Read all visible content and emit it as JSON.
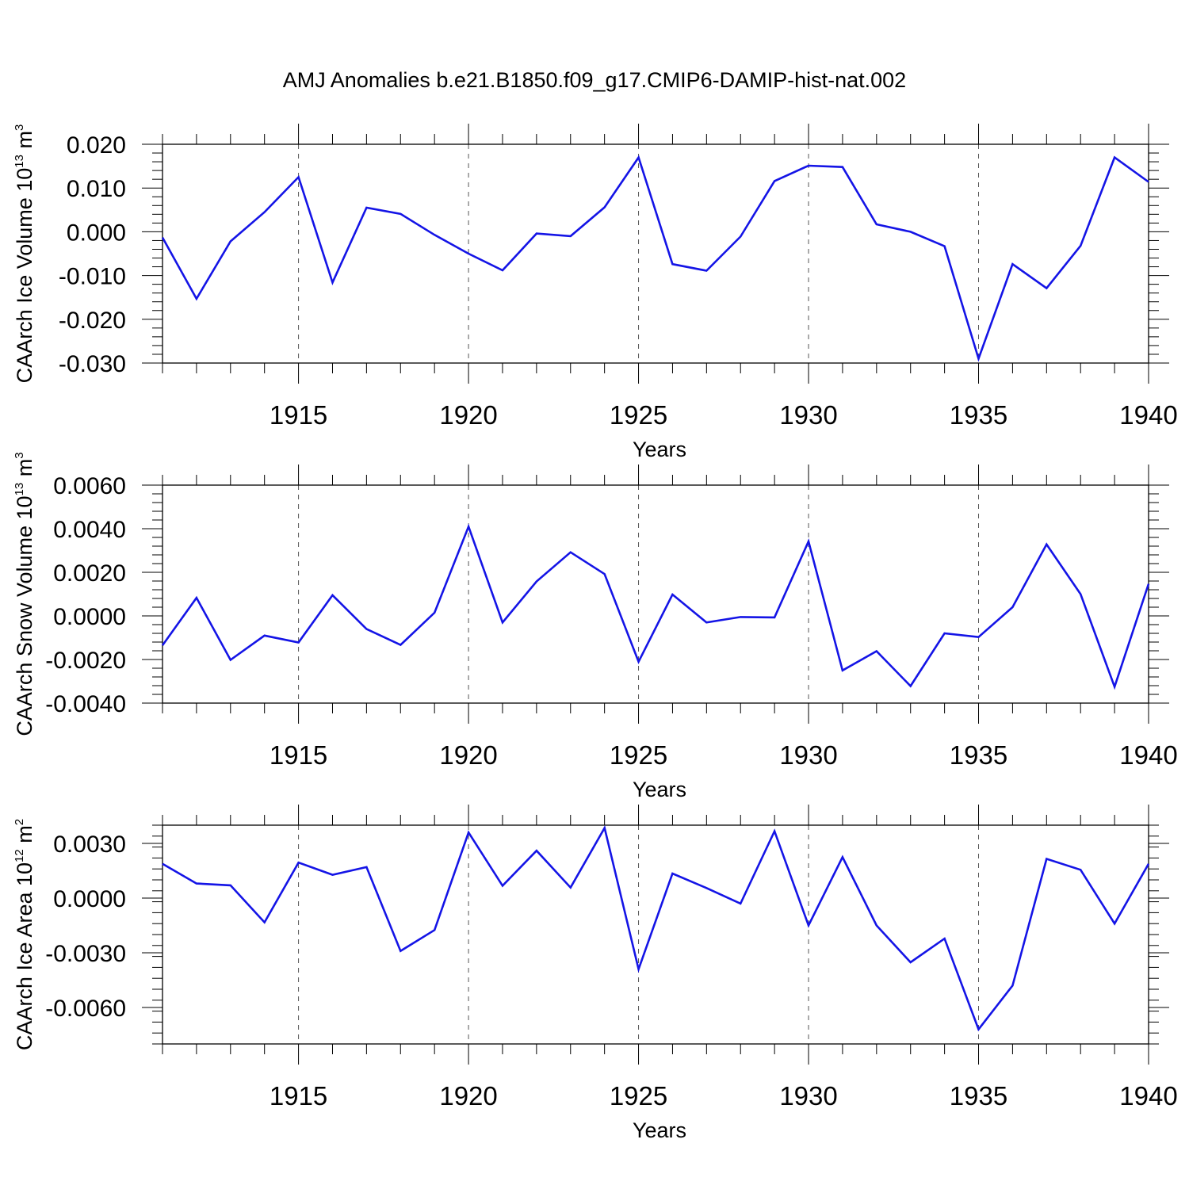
{
  "title": "AMJ Anomalies b.e21.B1850.f09_g17.CMIP6-DAMIP-hist-nat.002",
  "colors": {
    "line": "#1414e6",
    "axis": "#000000",
    "grid": "#555555"
  },
  "chart_data": [
    {
      "type": "line",
      "ylabel": {
        "text": "CAArch Ice Volume 10",
        "exp": "13",
        "unit": "m",
        "unit_exp": "3"
      },
      "xlabel": "Years",
      "xlim": [
        1911,
        1940
      ],
      "ylim": [
        -0.03,
        0.02
      ],
      "yticks": [
        -0.03,
        -0.02,
        -0.01,
        0.0,
        0.01,
        0.02
      ],
      "ytick_labels": [
        "-0.030",
        "-0.020",
        "-0.010",
        "0.000",
        "0.010",
        "0.020"
      ],
      "xticks": [
        1915,
        1920,
        1925,
        1930,
        1935,
        1940
      ],
      "xtick_labels": [
        "1915",
        "1920",
        "1925",
        "1930",
        "1935",
        "1940"
      ],
      "grid": "vertical dashed at major x ticks",
      "x": [
        1911,
        1912,
        1913,
        1914,
        1915,
        1916,
        1917,
        1918,
        1919,
        1920,
        1921,
        1922,
        1923,
        1924,
        1925,
        1926,
        1927,
        1928,
        1929,
        1930,
        1931,
        1932,
        1933,
        1934,
        1935,
        1936,
        1937,
        1938,
        1939,
        1940
      ],
      "values": [
        -0.0013,
        -0.0153,
        -0.0022,
        0.0045,
        0.0125,
        -0.0116,
        0.0055,
        0.0041,
        -0.0007,
        -0.005,
        -0.0088,
        -0.0004,
        -0.001,
        0.0056,
        0.017,
        -0.0074,
        -0.0089,
        -0.0011,
        0.0116,
        0.0151,
        0.0148,
        0.0017,
        0.0,
        -0.0033,
        -0.029,
        -0.0074,
        -0.0129,
        -0.0032,
        0.017,
        0.0114
      ]
    },
    {
      "type": "line",
      "ylabel": {
        "text": "CAArch Snow Volume 10",
        "exp": "13",
        "unit": "m",
        "unit_exp": "3"
      },
      "xlabel": "Years",
      "xlim": [
        1911,
        1940
      ],
      "ylim": [
        -0.004,
        0.006
      ],
      "yticks": [
        -0.004,
        -0.002,
        0.0,
        0.002,
        0.004,
        0.006
      ],
      "ytick_labels": [
        "-0.0040",
        "-0.0020",
        "0.0000",
        "0.0020",
        "0.0040",
        "0.0060"
      ],
      "xticks": [
        1915,
        1920,
        1925,
        1930,
        1935,
        1940
      ],
      "xtick_labels": [
        "1915",
        "1920",
        "1925",
        "1930",
        "1935",
        "1940"
      ],
      "grid": "vertical dashed at major x ticks",
      "x": [
        1911,
        1912,
        1913,
        1914,
        1915,
        1916,
        1917,
        1918,
        1919,
        1920,
        1921,
        1922,
        1923,
        1924,
        1925,
        1926,
        1927,
        1928,
        1929,
        1930,
        1931,
        1932,
        1933,
        1934,
        1935,
        1936,
        1937,
        1938,
        1939,
        1940
      ],
      "values": [
        -0.00135,
        0.00083,
        -0.00202,
        -0.0009,
        -0.00122,
        0.00095,
        -0.0006,
        -0.00133,
        0.00015,
        0.0041,
        -0.0003,
        0.00158,
        0.00292,
        0.00192,
        -0.0021,
        0.00098,
        -0.0003,
        -5e-05,
        -7e-05,
        0.00342,
        -0.0025,
        -0.00162,
        -0.00322,
        -0.0008,
        -0.00097,
        0.0004,
        0.00328,
        0.001,
        -0.00325,
        0.00147
      ]
    },
    {
      "type": "line",
      "ylabel": {
        "text": "CAArch Ice Area 10",
        "exp": "12",
        "unit": "m",
        "unit_exp": "2"
      },
      "xlabel": "Years",
      "xlim": [
        1911,
        1940
      ],
      "ylim": [
        -0.008,
        0.004
      ],
      "yticks": [
        -0.006,
        -0.003,
        0.0,
        0.003
      ],
      "ytick_labels": [
        "-0.0060",
        "-0.0030",
        "0.0000",
        "0.0030"
      ],
      "xticks": [
        1915,
        1920,
        1925,
        1930,
        1935,
        1940
      ],
      "xtick_labels": [
        "1915",
        "1920",
        "1925",
        "1930",
        "1935",
        "1940"
      ],
      "grid": "vertical dashed at major x ticks",
      "x": [
        1911,
        1912,
        1913,
        1914,
        1915,
        1916,
        1917,
        1918,
        1919,
        1920,
        1921,
        1922,
        1923,
        1924,
        1925,
        1926,
        1927,
        1928,
        1929,
        1930,
        1931,
        1932,
        1933,
        1934,
        1935,
        1936,
        1937,
        1938,
        1939,
        1940
      ],
      "values": [
        0.00188,
        0.0008,
        0.0007,
        -0.00133,
        0.00195,
        0.00128,
        0.0017,
        -0.0029,
        -0.00175,
        0.0036,
        0.00068,
        0.0026,
        0.00058,
        0.00385,
        -0.0039,
        0.00135,
        0.00055,
        -0.0003,
        0.00367,
        -0.0015,
        0.00225,
        -0.0015,
        -0.00352,
        -0.00222,
        -0.0072,
        -0.0048,
        0.00215,
        0.00155,
        -0.0014,
        0.00188
      ]
    }
  ]
}
